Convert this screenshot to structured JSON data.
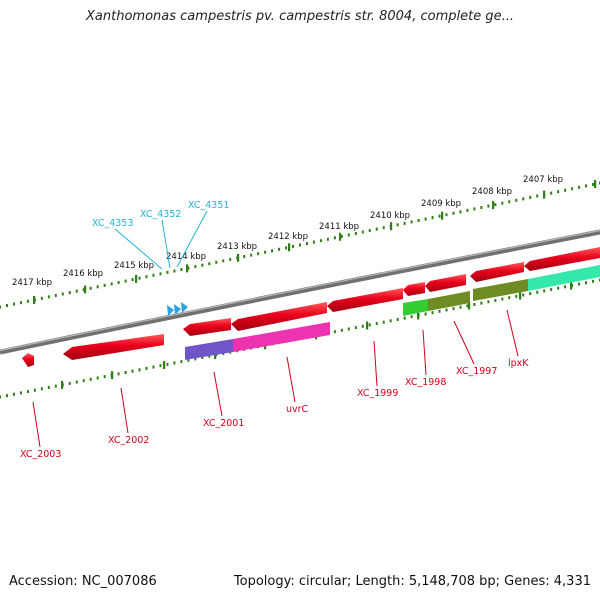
{
  "title": "Xanthomonas campestris pv. campestris str. 8004, complete ge...",
  "footer": {
    "accession": "Accession: NC_007086",
    "topology": "Topology: circular; Length: 5,148,708 bp; Genes: 4,331"
  },
  "ticks": [
    "2417 kbp",
    "2416 kbp",
    "2415 kbp",
    "2414 kbp",
    "2413 kbp",
    "2412 kbp",
    "2411 kbp",
    "2410 kbp",
    "2409 kbp",
    "2408 kbp",
    "2407 kbp"
  ],
  "labels_top": [
    "XC_4353",
    "XC_4352",
    "XC_4351"
  ],
  "labels_bottom": [
    "XC_2003",
    "XC_2002",
    "XC_2001",
    "uvrC",
    "XC_1999",
    "XC_1998",
    "XC_1997",
    "lpxK"
  ],
  "colors": {
    "gene_red": "#e8001c",
    "trna_blue": "#29a3e6",
    "label_red": "#d6001c",
    "label_cyan": "#22b5d8",
    "tick_green": "#2e7d16",
    "backbone": "#808080",
    "cds_purple": "#6f55c8",
    "cds_magenta": "#ee33b0",
    "cds_green": "#33cc33",
    "cds_olive": "#6e8c23",
    "cds_teal": "#33e8a8"
  }
}
